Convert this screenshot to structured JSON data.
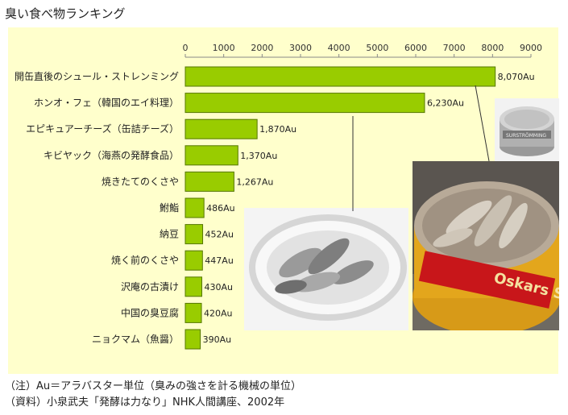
{
  "page_title": "臭い食べ物ランキング",
  "notes": [
    "（注）Au＝アラバスター単位（臭みの強さを計る機械の単位）",
    "（資料）小泉武夫「発酵は力なり」NHK人間講座、2002年"
  ],
  "photos": [
    {
      "name": "surstromming-can-photo",
      "label": "Oskars SURSTRÖMMING"
    },
    {
      "name": "surstromming-small-can-photo",
      "label": "SURSTRÖMMING"
    },
    {
      "name": "hongeo-plate-photo",
      "label": ""
    }
  ],
  "colors": {
    "bar": "#99cc00",
    "bar_stroke": "#557700",
    "panel": "#ffffcc",
    "axis": "#888888"
  },
  "chart_data": {
    "type": "bar",
    "orientation": "horizontal",
    "title": "臭い食べ物ランキング",
    "xlim": [
      0,
      9000
    ],
    "xticks": [
      0,
      1000,
      2000,
      3000,
      4000,
      5000,
      6000,
      7000,
      8000,
      9000
    ],
    "xtick_labels": [
      "0",
      "1000",
      "2000",
      "3000",
      "4000",
      "5000",
      "6000",
      "7000",
      "8000",
      "9000"
    ],
    "categories": [
      "開缶直後のシュール・ストレンミング",
      "ホンオ・フェ（韓国のエイ料理）",
      "エピキュアーチーズ（缶詰チーズ）",
      "キビヤック（海燕の発酵食品）",
      "焼きたてのくさや",
      "鮒鮨",
      "納豆",
      "焼く前のくさや",
      "沢庵の古漬け",
      "中国の臭豆腐",
      "ニョクマム（魚醤）"
    ],
    "values": [
      8070,
      6230,
      1870,
      1370,
      1267,
      486,
      452,
      447,
      430,
      420,
      390
    ],
    "value_labels": [
      "8,070Au",
      "6,230Au",
      "1,870Au",
      "1,370Au",
      "1,267Au",
      "486Au",
      "452Au",
      "447Au",
      "430Au",
      "420Au",
      "390Au"
    ],
    "grid": false
  }
}
